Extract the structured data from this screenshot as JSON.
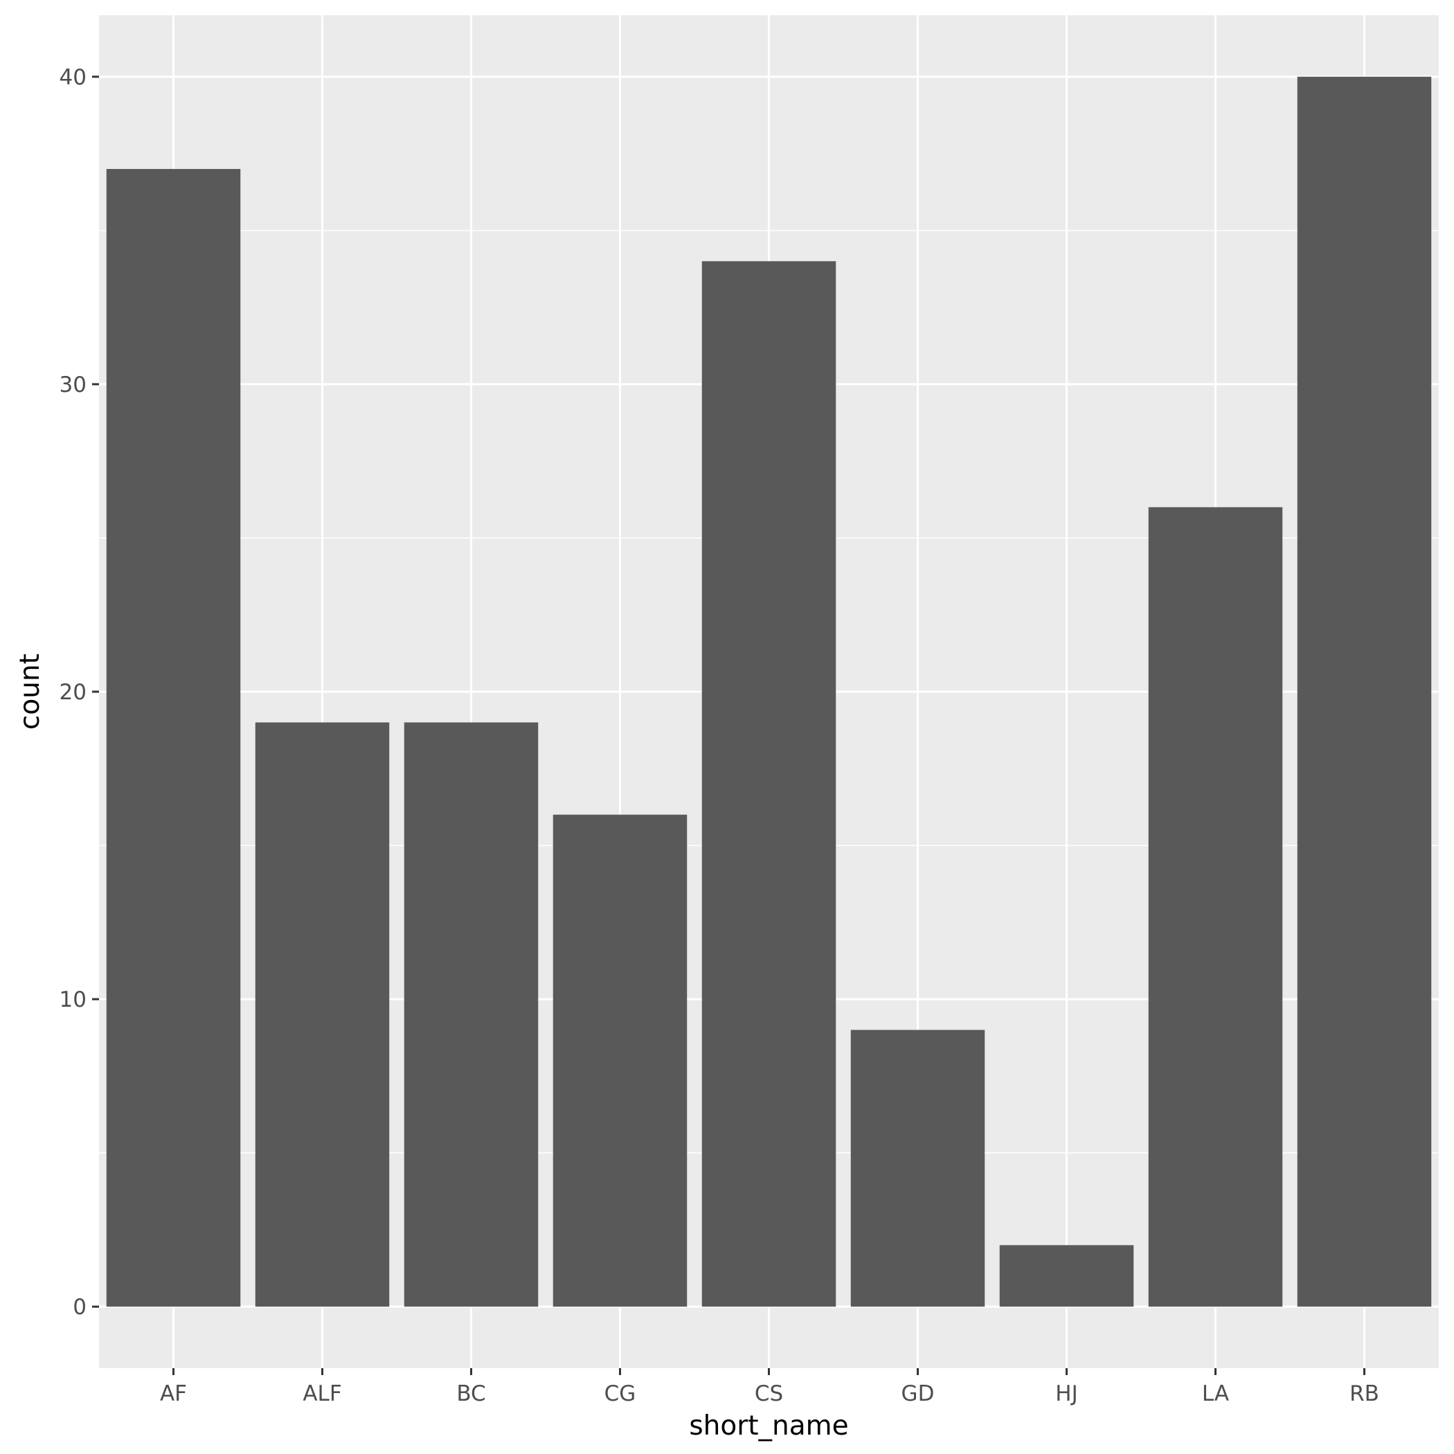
{
  "chart_data": {
    "type": "bar",
    "categories": [
      "AF",
      "ALF",
      "BC",
      "CG",
      "CS",
      "GD",
      "HJ",
      "LA",
      "RB"
    ],
    "values": [
      37,
      19,
      19,
      16,
      34,
      9,
      2,
      26,
      40
    ],
    "xlabel": "short_name",
    "ylabel": "count",
    "ylim": [
      -2,
      42
    ],
    "yticks": [
      0,
      10,
      20,
      30,
      40
    ],
    "grid": true,
    "colors": {
      "panel": "#ebebeb",
      "grid": "#ffffff",
      "bar": "#595959",
      "tick_text": "#4d4d4d",
      "tick_mark": "#333333"
    }
  }
}
